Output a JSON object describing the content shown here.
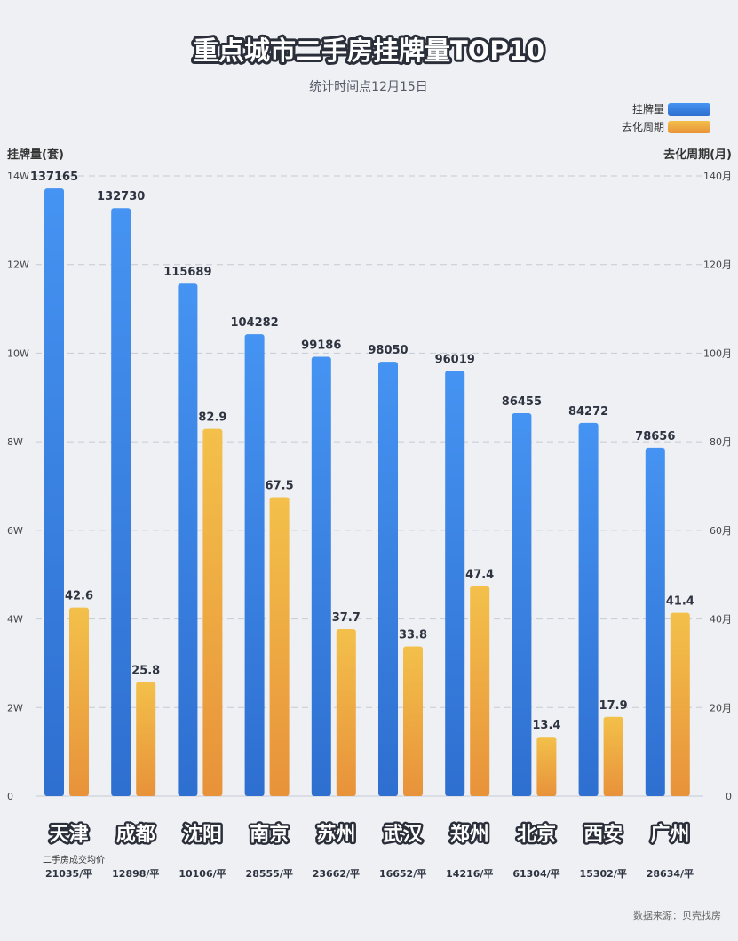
{
  "chart_data": {
    "type": "bar",
    "title": "重点城市二手房挂牌量TOP10",
    "subtitle": "统计时间点12月15日",
    "y_left_label": "挂牌量(套)",
    "y_right_label": "去化周期(月)",
    "y_left_ticks": [
      "0",
      "2W",
      "4W",
      "6W",
      "8W",
      "10W",
      "12W",
      "14W"
    ],
    "y_right_ticks": [
      "0",
      "20月",
      "40月",
      "60月",
      "80月",
      "100月",
      "120月",
      "140月"
    ],
    "ylim_left": [
      0,
      140000
    ],
    "ylim_right": [
      0,
      140
    ],
    "legend_position": "top-right",
    "categories": [
      "天津",
      "成都",
      "沈阳",
      "南京",
      "苏州",
      "武汉",
      "郑州",
      "北京",
      "西安",
      "广州"
    ],
    "series": [
      {
        "name": "挂牌量",
        "axis": "left",
        "color": "#3f8ef0",
        "values": [
          137165,
          132730,
          115689,
          104282,
          99186,
          98050,
          96019,
          86455,
          84272,
          78656
        ],
        "labels": [
          "137165",
          "132730",
          "115689",
          "104282",
          "99186",
          "98050",
          "96019",
          "86455",
          "84272",
          "78656"
        ]
      },
      {
        "name": "去化周期",
        "axis": "right",
        "color": "#f1b744",
        "values": [
          42.6,
          25.8,
          82.9,
          67.5,
          37.7,
          33.8,
          47.4,
          13.4,
          17.9,
          41.4
        ],
        "labels": [
          "42.6",
          "25.8",
          "82.9",
          "67.5",
          "37.7",
          "33.8",
          "47.4",
          "13.4",
          "17.9",
          "41.4"
        ]
      }
    ],
    "price_caption": "二手房成交均价",
    "prices": [
      "21035/平",
      "12898/平",
      "10106/平",
      "28555/平",
      "23662/平",
      "16652/平",
      "14216/平",
      "61304/平",
      "15302/平",
      "28634/平"
    ],
    "source": "数据来源：贝壳找房",
    "grid": true
  }
}
